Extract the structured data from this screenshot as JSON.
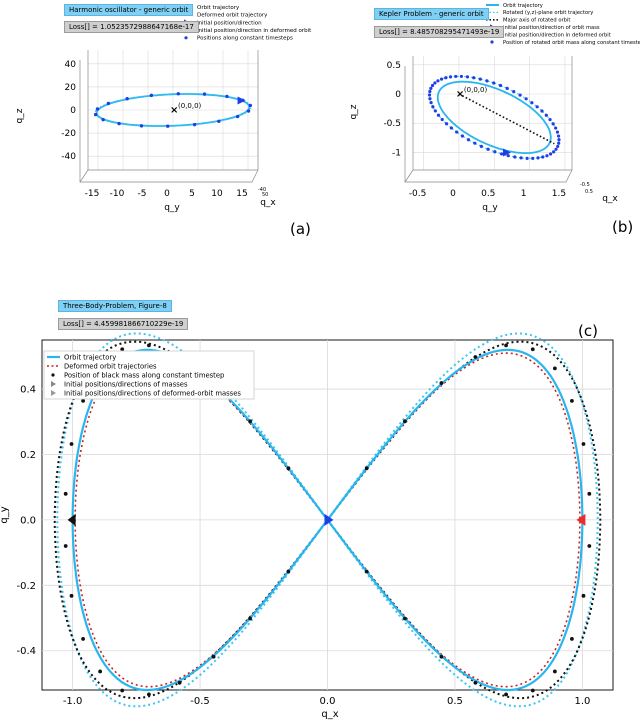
{
  "charts": {
    "a": {
      "label": "(a)",
      "title_box": "Harmonic oscillator - generic orbit",
      "loss_box": "Loss[] = 1.0523572988647168e-17",
      "legend": [
        "Orbit trajectory",
        "Deformed orbit trajectory",
        "initial position/direction",
        "initial position/direction in deformed orbit",
        "Positions along constant timesteps"
      ],
      "xlabel": "q_y",
      "ylabel": "q_z",
      "depth_label": "q_x",
      "xticks": [
        "-15",
        "-10",
        "-5",
        "0",
        "5",
        "10",
        "15"
      ],
      "yticks": [
        "40",
        "20",
        "0",
        "-20",
        "-40"
      ],
      "depth_ticks": [
        "-40",
        "50"
      ],
      "origin_label": "(0,0,0)"
    },
    "b": {
      "label": "(b)",
      "title_box": "Kepler Problem - generic orbit",
      "loss_box": "Loss[] = 8.485708295471493e-19",
      "legend": [
        "Orbit trajectory",
        "Rotated (y,z)-plane orbit trajectory",
        "Major axis of rotated orbit",
        "initial position/direction of orbit mass",
        "initial position/direction in deformed orbit",
        "Position of rotated orbit mass along constant timestep"
      ],
      "xlabel": "q_y",
      "ylabel": "q_z",
      "depth_label": "q_x",
      "xticks": [
        "-0.5",
        "0",
        "0.5",
        "1",
        "1.5"
      ],
      "yticks": [
        "0.5",
        "0",
        "-0.5",
        "-1"
      ],
      "depth_ticks": [
        "-0.5",
        "0.5"
      ],
      "origin_label": "(0,0,0)"
    },
    "c": {
      "label": "(c)",
      "title_box": "Three-Body-Problem, Figure-8",
      "loss_box": "Loss[] = 4.459981866710229e-19",
      "legend": [
        "Orbit trajectory",
        "Deformed orbit trajectories",
        "Position of black mass along constant timestep",
        "Initial positions/directions of masses",
        "Initial positions/directions of deformed-orbit masses"
      ],
      "xlabel": "q_x",
      "ylabel": "q_y",
      "xticks": [
        "-1.0",
        "-0.5",
        "0.0",
        "0.5",
        "1.0"
      ],
      "yticks": [
        "0.4",
        "0.2",
        "0.0",
        "-0.2",
        "-0.4"
      ]
    }
  },
  "colors": {
    "orbit": "#29b6f0",
    "deformed_light": "#3ec4ef",
    "deformed_black": "#111111",
    "deformed_red": "#cc2222",
    "marker_blue": "#1f3fe6",
    "marker_red": "#ee2a2a",
    "marker_black": "#111111",
    "grid": "#d9d9d9",
    "title_box_bg": "#7fd0f4",
    "loss_box_bg": "#cfcfcf"
  },
  "chart_data": [
    {
      "type": "line",
      "id": "a",
      "title": "Harmonic oscillator - generic orbit",
      "xlabel": "q_y",
      "ylabel": "q_z",
      "xlim": [
        -17,
        17
      ],
      "ylim": [
        -52,
        52
      ],
      "grid": true,
      "series": [
        {
          "name": "Orbit trajectory",
          "shape": "ellipse",
          "center": [
            0,
            0
          ],
          "semi_major": 16,
          "semi_minor": 13,
          "angle_deg": 31
        },
        {
          "name": "Deformed orbit trajectory",
          "shape": "ellipse",
          "center": [
            0,
            0
          ],
          "semi_major": 16.3,
          "semi_minor": 13.3,
          "angle_deg": 31
        }
      ],
      "origin": [
        0,
        0
      ],
      "markers_count": 18
    },
    {
      "type": "line",
      "id": "b",
      "title": "Kepler Problem - generic orbit",
      "xlabel": "q_y",
      "ylabel": "q_z",
      "xlim": [
        -0.65,
        1.6
      ],
      "ylim": [
        -1.3,
        0.65
      ],
      "grid": true,
      "series": [
        {
          "name": "Orbit trajectory",
          "shape": "ellipse",
          "center": [
            0.5,
            -0.4
          ],
          "semi_major": 0.9,
          "semi_minor": 0.45,
          "angle_deg": -32
        },
        {
          "name": "Rotated (y,z)-plane orbit trajectory",
          "shape": "ellipse",
          "center": [
            0.5,
            -0.4
          ],
          "semi_major": 1.03,
          "semi_minor": 0.52,
          "angle_deg": -32
        },
        {
          "name": "Major axis of rotated orbit",
          "points": [
            [
              0,
              0
            ],
            [
              1.35,
              -0.85
            ]
          ]
        }
      ],
      "origin": [
        0,
        0
      ],
      "markers_count": 60
    },
    {
      "type": "line",
      "id": "c",
      "title": "Three-Body-Problem, Figure-8",
      "xlabel": "q_x",
      "ylabel": "q_y",
      "xlim": [
        -1.12,
        1.12
      ],
      "ylim": [
        -0.52,
        0.55
      ],
      "grid": true,
      "series": [
        {
          "name": "Orbit trajectory",
          "shape": "lemniscate",
          "scale_x": 1.0,
          "scale_y": 0.52
        },
        {
          "name": "Deformed orbit trajectories",
          "variants": [
            {
              "color": "light-blue",
              "scale_x": 1.06,
              "scale_y": 0.57
            },
            {
              "color": "black",
              "scale_x": 1.07,
              "scale_y": 0.545
            },
            {
              "color": "red",
              "scale_x": 0.99,
              "scale_y": 0.51
            }
          ]
        }
      ],
      "initial_positions": [
        [
          -1.0,
          0.0
        ],
        [
          0.0,
          0.0
        ],
        [
          1.0,
          0.0
        ]
      ],
      "markers_count": 42
    }
  ]
}
